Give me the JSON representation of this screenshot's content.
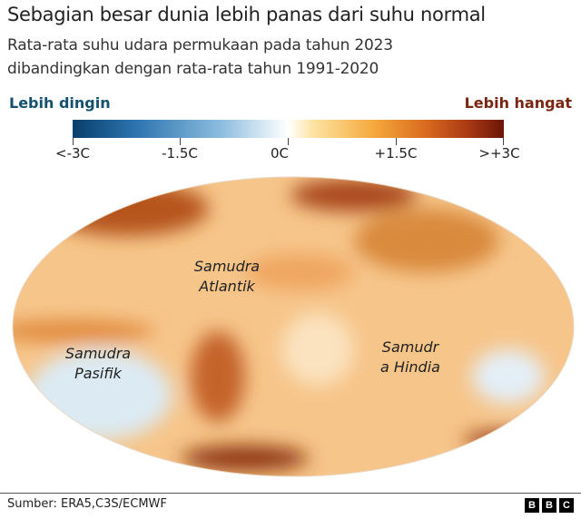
{
  "title": "Sebagian besar dunia lebih panas dari suhu normal",
  "subtitle_lines": [
    "Rata-rata suhu udara permukaan pada tahun 2023",
    "dibandingkan dengan rata-rata tahun 1991-2020"
  ],
  "legend": {
    "cold_label": "Lebih dingin",
    "warm_label": "Lebih hangat",
    "ticks": [
      "<-3C",
      "-1.5C",
      "0C",
      "+1.5C",
      ">+3C"
    ],
    "colors": {
      "cold": "#083f6b",
      "neutral": "#ffffff",
      "warm": "#6a1608"
    }
  },
  "map": {
    "labels": [
      {
        "line1": "Samudra",
        "line2": "Atlantik"
      },
      {
        "line1": "Samudra",
        "line2": "Pasifik"
      },
      {
        "line1": "Samudr",
        "line2": "a Hindia"
      }
    ]
  },
  "footer": {
    "source": "Sumber: ERA5,C3S/ECMWF",
    "logo": [
      "B",
      "B",
      "C"
    ]
  }
}
